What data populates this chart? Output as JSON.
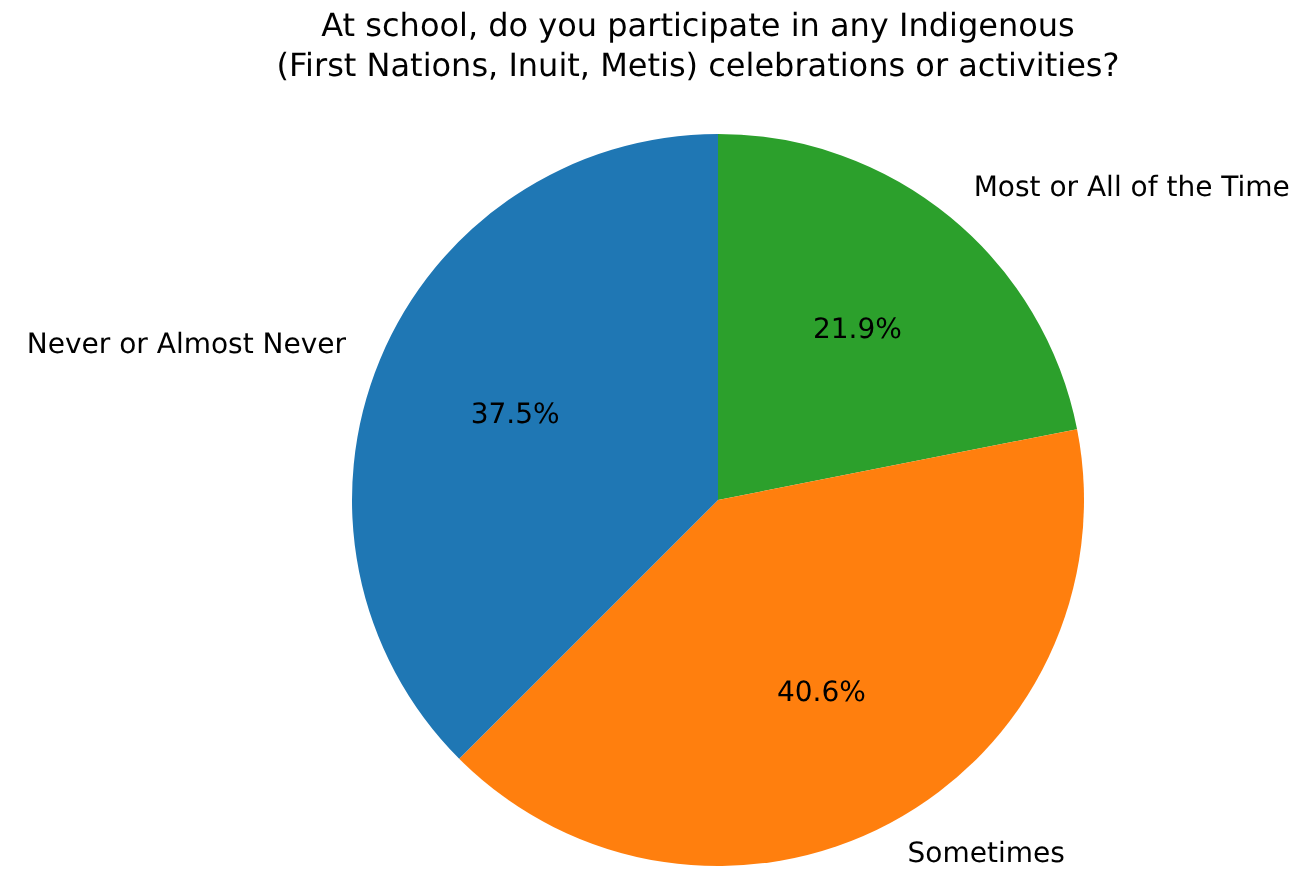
{
  "chart_data": {
    "type": "pie",
    "title": "At school, do you participate in any Indigenous\n(First Nations, Inuit, Metis) celebrations or activities?",
    "categories": [
      "Most or All of the Time",
      "Sometimes",
      "Never or Almost Never"
    ],
    "values": [
      21.9,
      40.6,
      37.5
    ],
    "colors": [
      "#2ca02c",
      "#ff7f0e",
      "#1f77b4"
    ],
    "value_labels": [
      "21.9%",
      "40.6%",
      "37.5%"
    ],
    "legend": false
  }
}
